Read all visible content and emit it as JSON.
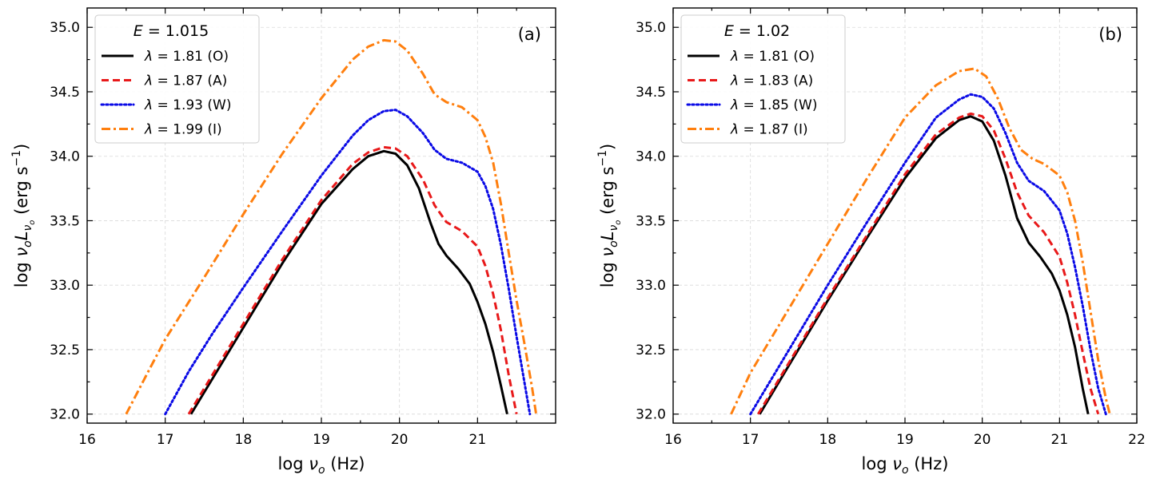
{
  "chart_data": [
    {
      "type": "line",
      "panel_tag": "(a)",
      "title": "",
      "legend_title": "E = 1.015",
      "legend_title_parts": {
        "var": "E",
        "eq": " = ",
        "value": "1.015"
      },
      "xlabel": "log ν",
      "xlabel_parts": {
        "pre": "log ",
        "var": "ν",
        "sub": "o",
        "unit": " (Hz)"
      },
      "ylabel_parts": {
        "pre": "log ",
        "v1": "ν",
        "s1": "o",
        "v2": "L",
        "s2": "ν",
        "s3": "o",
        "unit_a": " (erg s",
        "exp": "−1",
        "unit_b": ")"
      },
      "xlim": [
        16,
        22
      ],
      "ylim": [
        31.93,
        35.15
      ],
      "xticks": [
        16,
        17,
        18,
        19,
        20,
        21
      ],
      "xtick_labels": [
        "16",
        "17",
        "18",
        "19",
        "20",
        "21"
      ],
      "yticks": [
        32.0,
        32.5,
        33.0,
        33.5,
        34.0,
        34.5,
        35.0
      ],
      "ytick_labels": [
        "32.0",
        "32.5",
        "33.0",
        "33.5",
        "34.0",
        "34.5",
        "35.0"
      ],
      "legend_position": "top-left",
      "grid": true,
      "series": [
        {
          "name": "λ = 1.81 (O)",
          "lambda": "1.81",
          "tag": "(O)",
          "color": "#000000",
          "style": "solid",
          "x": [
            17.33,
            17.6,
            18.0,
            18.5,
            19.0,
            19.4,
            19.6,
            19.8,
            19.95,
            20.1,
            20.25,
            20.4,
            20.5,
            20.6,
            20.75,
            20.9,
            21.0,
            21.1,
            21.2,
            21.3,
            21.38
          ],
          "y": [
            32.0,
            32.27,
            32.67,
            33.17,
            33.63,
            33.9,
            34.0,
            34.04,
            34.02,
            33.93,
            33.75,
            33.48,
            33.32,
            33.23,
            33.13,
            33.01,
            32.87,
            32.7,
            32.48,
            32.22,
            32.0
          ]
        },
        {
          "name": "λ = 1.87 (A)",
          "lambda": "1.87",
          "tag": "(A)",
          "color": "#e8191a",
          "style": "dashed",
          "x": [
            17.3,
            17.6,
            18.0,
            18.5,
            19.0,
            19.4,
            19.6,
            19.8,
            19.95,
            20.1,
            20.3,
            20.45,
            20.6,
            20.8,
            21.0,
            21.1,
            21.2,
            21.3,
            21.4,
            21.5
          ],
          "y": [
            32.0,
            32.3,
            32.7,
            33.2,
            33.66,
            33.94,
            34.03,
            34.07,
            34.06,
            34.0,
            33.82,
            33.62,
            33.49,
            33.42,
            33.3,
            33.15,
            32.93,
            32.65,
            32.3,
            32.0
          ]
        },
        {
          "name": "λ = 1.93 (W)",
          "lambda": "1.93",
          "tag": "(W)",
          "color": "#0a0ae6",
          "style": "dotted",
          "x": [
            17.0,
            17.3,
            17.6,
            18.0,
            18.5,
            19.0,
            19.4,
            19.6,
            19.8,
            19.95,
            20.1,
            20.3,
            20.45,
            20.6,
            20.8,
            21.0,
            21.1,
            21.2,
            21.3,
            21.4,
            21.5,
            21.6,
            21.67
          ],
          "y": [
            32.0,
            32.33,
            32.62,
            32.98,
            33.42,
            33.85,
            34.16,
            34.28,
            34.35,
            34.36,
            34.31,
            34.18,
            34.05,
            33.98,
            33.95,
            33.88,
            33.77,
            33.59,
            33.31,
            32.97,
            32.6,
            32.25,
            32.0
          ]
        },
        {
          "name": "λ = 1.99 (I)",
          "lambda": "1.99",
          "tag": "(I)",
          "color": "#ff7f0e",
          "style": "dashdot",
          "x": [
            16.5,
            16.8,
            17.0,
            17.5,
            18.0,
            18.5,
            19.0,
            19.4,
            19.6,
            19.8,
            19.95,
            20.1,
            20.3,
            20.45,
            20.6,
            20.8,
            21.0,
            21.1,
            21.2,
            21.3,
            21.4,
            21.5,
            21.6,
            21.7,
            21.75
          ],
          "y": [
            32.0,
            32.35,
            32.58,
            33.06,
            33.55,
            34.02,
            34.45,
            34.75,
            34.85,
            34.9,
            34.89,
            34.82,
            34.64,
            34.48,
            34.42,
            34.38,
            34.28,
            34.15,
            33.95,
            33.63,
            33.25,
            32.88,
            32.55,
            32.2,
            32.0
          ]
        }
      ]
    },
    {
      "type": "line",
      "panel_tag": "(b)",
      "title": "",
      "legend_title": "E = 1.02",
      "legend_title_parts": {
        "var": "E",
        "eq": " = ",
        "value": "1.02"
      },
      "xlabel": "log ν",
      "xlabel_parts": {
        "pre": "log ",
        "var": "ν",
        "sub": "o",
        "unit": " (Hz)"
      },
      "ylabel_parts": {
        "pre": "log ",
        "v1": "ν",
        "s1": "o",
        "v2": "L",
        "s2": "ν",
        "s3": "o",
        "unit_a": " (erg s",
        "exp": "−1",
        "unit_b": ")"
      },
      "xlim": [
        16,
        22
      ],
      "ylim": [
        31.93,
        35.15
      ],
      "xticks": [
        16,
        17,
        18,
        19,
        20,
        21,
        22
      ],
      "xtick_labels": [
        "16",
        "17",
        "18",
        "19",
        "20",
        "21",
        "22"
      ],
      "yticks": [
        32.0,
        32.5,
        33.0,
        33.5,
        34.0,
        34.5,
        35.0
      ],
      "ytick_labels": [
        "32.0",
        "32.5",
        "33.0",
        "33.5",
        "34.0",
        "34.5",
        "35.0"
      ],
      "legend_position": "top-left",
      "grid": true,
      "series": [
        {
          "name": "λ = 1.81 (O)",
          "lambda": "1.81",
          "tag": "(O)",
          "color": "#000000",
          "style": "solid",
          "x": [
            17.12,
            17.5,
            18.0,
            18.5,
            19.0,
            19.4,
            19.7,
            19.85,
            20.0,
            20.15,
            20.3,
            20.45,
            20.6,
            20.75,
            20.9,
            21.0,
            21.1,
            21.2,
            21.3,
            21.37
          ],
          "y": [
            32.0,
            32.38,
            32.88,
            33.36,
            33.83,
            34.14,
            34.28,
            34.31,
            34.27,
            34.12,
            33.85,
            33.52,
            33.33,
            33.22,
            33.09,
            32.96,
            32.77,
            32.52,
            32.2,
            32.0
          ]
        },
        {
          "name": "λ = 1.83 (A)",
          "lambda": "1.83",
          "tag": "(A)",
          "color": "#e8191a",
          "style": "dashed",
          "x": [
            17.1,
            17.5,
            18.0,
            18.5,
            19.0,
            19.4,
            19.7,
            19.85,
            20.0,
            20.15,
            20.3,
            20.45,
            20.6,
            20.8,
            21.0,
            21.1,
            21.2,
            21.3,
            21.4,
            21.5
          ],
          "y": [
            32.0,
            32.4,
            32.9,
            33.38,
            33.86,
            34.17,
            34.3,
            34.33,
            34.31,
            34.2,
            33.98,
            33.72,
            33.54,
            33.41,
            33.22,
            33.02,
            32.77,
            32.48,
            32.2,
            32.0
          ]
        },
        {
          "name": "λ = 1.85 (W)",
          "lambda": "1.85",
          "tag": "(W)",
          "color": "#0a0ae6",
          "style": "dotted",
          "x": [
            17.0,
            17.5,
            18.0,
            18.5,
            19.0,
            19.4,
            19.7,
            19.85,
            20.0,
            20.15,
            20.3,
            20.45,
            20.6,
            20.8,
            21.0,
            21.1,
            21.2,
            21.3,
            21.4,
            21.5,
            21.6
          ],
          "y": [
            32.0,
            32.5,
            33.0,
            33.48,
            33.95,
            34.3,
            34.44,
            34.48,
            34.46,
            34.37,
            34.18,
            33.95,
            33.81,
            33.73,
            33.58,
            33.4,
            33.14,
            32.84,
            32.5,
            32.2,
            32.0
          ]
        },
        {
          "name": "λ = 1.87 (I)",
          "lambda": "1.87",
          "tag": "(I)",
          "color": "#ff7f0e",
          "style": "dashdot",
          "x": [
            16.75,
            17.0,
            17.5,
            18.0,
            18.5,
            19.0,
            19.4,
            19.7,
            19.9,
            20.05,
            20.2,
            20.35,
            20.5,
            20.65,
            20.8,
            21.0,
            21.1,
            21.2,
            21.3,
            21.4,
            21.5,
            21.6,
            21.65
          ],
          "y": [
            32.0,
            32.32,
            32.82,
            33.32,
            33.82,
            34.3,
            34.55,
            34.66,
            34.68,
            34.62,
            34.45,
            34.22,
            34.05,
            33.98,
            33.94,
            33.85,
            33.72,
            33.5,
            33.18,
            32.8,
            32.42,
            32.12,
            32.0
          ]
        }
      ]
    }
  ]
}
